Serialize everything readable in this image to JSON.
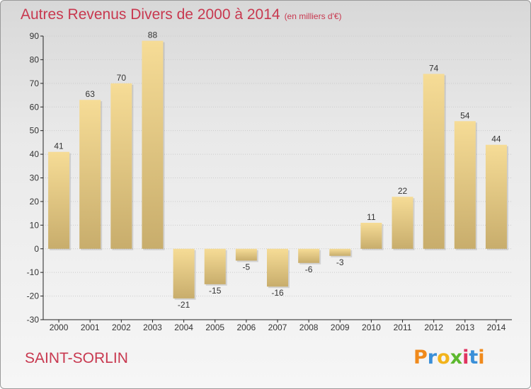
{
  "title": {
    "main": "Autres Revenus Divers de 2000 à 2014",
    "unit": "(en milliers d'€)"
  },
  "commune": "SAINT-SORLIN",
  "logo": {
    "text": "Proxiti",
    "letters": [
      {
        "char": "P",
        "color": "#f08a1c"
      },
      {
        "char": "r",
        "color": "#3a8fd8"
      },
      {
        "char": "o",
        "color": "#f2b31b"
      },
      {
        "char": "x",
        "color": "#5cb82e"
      },
      {
        "char": "i",
        "color": "#e0335f"
      },
      {
        "char": "t",
        "color": "#3a8fd8"
      },
      {
        "char": "i",
        "color": "#f08a1c"
      }
    ]
  },
  "colors": {
    "title": "#c8384f",
    "bar_light": "#f6dc96",
    "bar_dark": "#c8ad6c",
    "grid": "#cccccc",
    "axis": "#222222"
  },
  "chart_data": {
    "type": "bar",
    "categories": [
      "2000",
      "2001",
      "2002",
      "2003",
      "2004",
      "2005",
      "2006",
      "2007",
      "2008",
      "2009",
      "2010",
      "2011",
      "2012",
      "2013",
      "2014"
    ],
    "values": [
      41,
      63,
      70,
      88,
      -21,
      -15,
      -5,
      -16,
      -6,
      -3,
      11,
      22,
      74,
      54,
      44
    ],
    "title": "Autres Revenus Divers de 2000 à 2014",
    "subtitle": "(en milliers d'€)",
    "xlabel": "",
    "ylabel": "",
    "ylim": [
      -30,
      90
    ],
    "yticks": [
      -30,
      -20,
      -10,
      0,
      10,
      20,
      30,
      40,
      50,
      60,
      70,
      80,
      90
    ],
    "grid": "horizontal"
  }
}
